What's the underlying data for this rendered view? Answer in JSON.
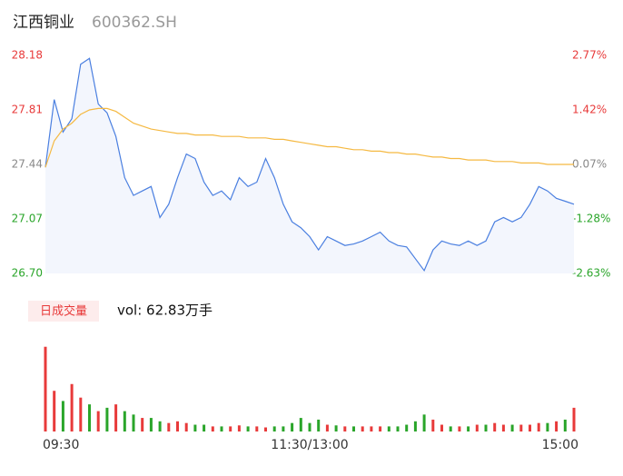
{
  "chart_data": {
    "type": "intraday",
    "title": "江西铜业",
    "subtitle": "600362.SH",
    "volume_button": "日成交量",
    "volume_summary": "vol: 62.83万手",
    "xlim": [
      0,
      240
    ],
    "xticks": [
      {
        "value": 0,
        "label": "09:30"
      },
      {
        "value": 120,
        "label": "11:30/13:00"
      },
      {
        "value": 240,
        "label": "15:00"
      }
    ],
    "ylim": [
      26.7,
      28.18
    ],
    "yticks": [
      {
        "value": 28.18,
        "label": "28.18"
      },
      {
        "value": 27.81,
        "label": "27.81"
      },
      {
        "value": 27.44,
        "label": "27.44"
      },
      {
        "value": 27.07,
        "label": "27.07"
      },
      {
        "value": 26.7,
        "label": "26.70"
      }
    ],
    "ytick_colors": [
      "#e83a3a",
      "#e83a3a",
      "#888888",
      "#2aa52a",
      "#2aa52a"
    ],
    "y2lim": [
      -2.63,
      2.77
    ],
    "y2ticks": [
      {
        "value": 2.77,
        "label": "2.77%"
      },
      {
        "value": 1.42,
        "label": "1.42%"
      },
      {
        "value": 0.07,
        "label": "0.07%"
      },
      {
        "value": -1.28,
        "label": "-1.28%"
      },
      {
        "value": -2.63,
        "label": "-2.63%"
      }
    ],
    "x": [
      0,
      4,
      8,
      12,
      16,
      20,
      24,
      28,
      32,
      36,
      40,
      44,
      48,
      52,
      56,
      60,
      64,
      68,
      72,
      76,
      80,
      84,
      88,
      92,
      96,
      100,
      104,
      108,
      112,
      116,
      120,
      124,
      128,
      132,
      136,
      140,
      144,
      148,
      152,
      156,
      160,
      164,
      168,
      172,
      176,
      180,
      184,
      188,
      192,
      196,
      200,
      204,
      208,
      212,
      216,
      220,
      224,
      228,
      232,
      236,
      240
    ],
    "series": [
      {
        "name": "price",
        "color": "#4a7fe0",
        "fill": "#f3f6fd",
        "values": [
          27.42,
          27.88,
          27.66,
          27.75,
          28.12,
          28.16,
          27.85,
          27.79,
          27.63,
          27.35,
          27.23,
          27.26,
          27.29,
          27.08,
          27.17,
          27.35,
          27.51,
          27.48,
          27.32,
          27.23,
          27.26,
          27.2,
          27.35,
          27.29,
          27.32,
          27.48,
          27.35,
          27.17,
          27.05,
          27.01,
          26.95,
          26.86,
          26.95,
          26.92,
          26.89,
          26.9,
          26.92,
          26.95,
          26.98,
          26.92,
          26.89,
          26.88,
          26.8,
          26.72,
          26.86,
          26.92,
          26.9,
          26.89,
          26.92,
          26.89,
          26.92,
          27.05,
          27.08,
          27.05,
          27.08,
          27.17,
          27.29,
          27.26,
          27.21,
          27.19,
          27.17
        ]
      },
      {
        "name": "average",
        "color": "#f5b942",
        "values": [
          27.42,
          27.6,
          27.68,
          27.72,
          27.78,
          27.81,
          27.82,
          27.82,
          27.8,
          27.76,
          27.72,
          27.7,
          27.68,
          27.67,
          27.66,
          27.65,
          27.65,
          27.64,
          27.64,
          27.64,
          27.63,
          27.63,
          27.63,
          27.62,
          27.62,
          27.62,
          27.61,
          27.61,
          27.6,
          27.59,
          27.58,
          27.57,
          27.56,
          27.56,
          27.55,
          27.54,
          27.54,
          27.53,
          27.53,
          27.52,
          27.52,
          27.51,
          27.51,
          27.5,
          27.49,
          27.49,
          27.48,
          27.48,
          27.47,
          27.47,
          27.47,
          27.46,
          27.46,
          27.46,
          27.45,
          27.45,
          27.45,
          27.44,
          27.44,
          27.44,
          27.44
        ]
      }
    ],
    "volume": {
      "vlim": [
        0,
        26000
      ],
      "values": [
        25000,
        12000,
        9000,
        14000,
        10000,
        8000,
        6000,
        7000,
        8000,
        6000,
        5000,
        4000,
        4000,
        3000,
        2500,
        3000,
        2500,
        2000,
        2000,
        1500,
        1500,
        1500,
        1800,
        1500,
        1500,
        1200,
        1500,
        1500,
        2500,
        4000,
        2500,
        3500,
        2000,
        1800,
        1500,
        1500,
        1500,
        1500,
        1500,
        1500,
        1500,
        2000,
        3000,
        5000,
        3500,
        2000,
        1500,
        1500,
        1500,
        2000,
        2000,
        2500,
        2000,
        2000,
        2000,
        2000,
        2500,
        2500,
        3000,
        3500,
        7000
      ],
      "colors": [
        "#e83a3a",
        "#e83a3a",
        "#2aa52a",
        "#e83a3a",
        "#e83a3a",
        "#2aa52a",
        "#e83a3a",
        "#2aa52a",
        "#e83a3a",
        "#2aa52a",
        "#2aa52a",
        "#e83a3a",
        "#2aa52a",
        "#2aa52a",
        "#e83a3a",
        "#e83a3a",
        "#e83a3a",
        "#2aa52a",
        "#2aa52a",
        "#e83a3a",
        "#2aa52a",
        "#e83a3a",
        "#e83a3a",
        "#2aa52a",
        "#e83a3a",
        "#e83a3a",
        "#2aa52a",
        "#2aa52a",
        "#2aa52a",
        "#2aa52a",
        "#2aa52a",
        "#2aa52a",
        "#e83a3a",
        "#2aa52a",
        "#e83a3a",
        "#2aa52a",
        "#e83a3a",
        "#e83a3a",
        "#e83a3a",
        "#2aa52a",
        "#2aa52a",
        "#2aa52a",
        "#2aa52a",
        "#2aa52a",
        "#e83a3a",
        "#e83a3a",
        "#2aa52a",
        "#e83a3a",
        "#2aa52a",
        "#e83a3a",
        "#2aa52a",
        "#e83a3a",
        "#e83a3a",
        "#2aa52a",
        "#e83a3a",
        "#e83a3a",
        "#e83a3a",
        "#2aa52a",
        "#e83a3a",
        "#2aa52a",
        "#e83a3a"
      ]
    }
  }
}
